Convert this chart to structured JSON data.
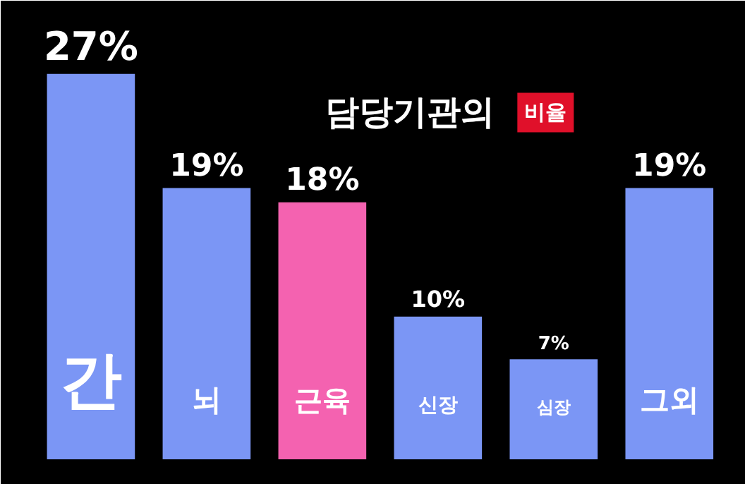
{
  "chart_data": {
    "type": "bar",
    "title": "담당기관의",
    "subtitle": "비율",
    "categories": [
      "간",
      "뇌",
      "근육",
      "신장",
      "심장",
      "그외"
    ],
    "values": [
      27,
      19,
      18,
      10,
      7,
      19
    ],
    "value_labels": [
      "27%",
      "19%",
      "18%",
      "10%",
      "7%",
      "19%"
    ],
    "colors": [
      "#7b96f5",
      "#7b96f5",
      "#f462b0",
      "#7b96f5",
      "#7b96f5",
      "#7b96f5"
    ],
    "grid": false
  }
}
